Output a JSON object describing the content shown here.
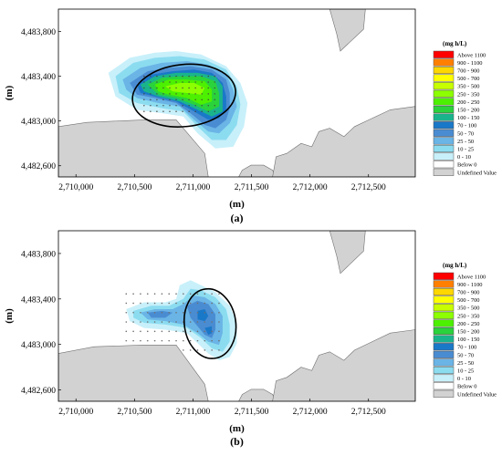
{
  "chart_data": [
    {
      "panel_label": "(a)",
      "type": "heatmap",
      "xlabel": "(m)",
      "ylabel": "(m)",
      "x_ticks": [
        "2,710,000",
        "2,710,500",
        "2,711,000",
        "2,711,500",
        "2,712,000",
        "2,712,500"
      ],
      "y_ticks": [
        "4,483,800",
        "4,483,400",
        "4,483,000",
        "4,482,600"
      ],
      "x_tick_values": [
        2710000,
        2710500,
        2711000,
        2711500,
        2712000,
        2712500
      ],
      "y_tick_values": [
        4483800,
        4483400,
        4483000,
        4482600
      ],
      "xlim": [
        2709850,
        2712900
      ],
      "ylim": [
        4482500,
        4484000
      ],
      "legend": {
        "title": "(mg h/L)",
        "placement": "right",
        "entries": [
          {
            "label": "Above 1100",
            "color": "#ff0000"
          },
          {
            "label": "900 - 1100",
            "color": "#ff7f00"
          },
          {
            "label": "700 - 900",
            "color": "#ffd700"
          },
          {
            "label": "500 - 700",
            "color": "#ffff00"
          },
          {
            "label": "350 - 500",
            "color": "#c8ff00"
          },
          {
            "label": "250 - 350",
            "color": "#8cff00"
          },
          {
            "label": "200 - 250",
            "color": "#4cf000"
          },
          {
            "label": "150 - 200",
            "color": "#2ad23c"
          },
          {
            "label": "100 - 150",
            "color": "#1ab48c"
          },
          {
            "label": "70 - 100",
            "color": "#1a78c8"
          },
          {
            "label": "50 - 70",
            "color": "#4a8cd2"
          },
          {
            "label": "25 - 50",
            "color": "#6ab4e6"
          },
          {
            "label": "10 - 25",
            "color": "#8cdcf0"
          },
          {
            "label": "0 - 10",
            "color": "#c8f0fa"
          },
          {
            "label": "Below 0",
            "color": "#ffffff"
          },
          {
            "label": "Undefined Value",
            "color": "#d2d2d2"
          }
        ]
      }
    },
    {
      "panel_label": "(b)",
      "type": "heatmap",
      "xlabel": "(m)",
      "ylabel": "(m)",
      "x_ticks": [
        "2,710,000",
        "2,710,500",
        "2,711,000",
        "2,711,500",
        "2,712,000",
        "2,712,500"
      ],
      "y_ticks": [
        "4,483,800",
        "4,483,400",
        "4,483,000",
        "4,482,600"
      ],
      "x_tick_values": [
        2710000,
        2710500,
        2711000,
        2711500,
        2712000,
        2712500
      ],
      "y_tick_values": [
        4483800,
        4483400,
        4483000,
        4482600
      ],
      "xlim": [
        2709850,
        2712900
      ],
      "ylim": [
        4482500,
        4484000
      ],
      "legend": {
        "title": "(mg h/L)",
        "placement": "right",
        "entries": [
          {
            "label": "Above 1100",
            "color": "#ff0000"
          },
          {
            "label": "900 - 1100",
            "color": "#ff7f00"
          },
          {
            "label": "700 - 900",
            "color": "#ffd700"
          },
          {
            "label": "500 - 700",
            "color": "#ffff00"
          },
          {
            "label": "350 - 500",
            "color": "#c8ff00"
          },
          {
            "label": "250 - 350",
            "color": "#8cff00"
          },
          {
            "label": "200 - 250",
            "color": "#4cf000"
          },
          {
            "label": "150 - 200",
            "color": "#2ad23c"
          },
          {
            "label": "100 - 150",
            "color": "#1ab48c"
          },
          {
            "label": "70 - 100",
            "color": "#1a78c8"
          },
          {
            "label": "50 - 70",
            "color": "#4a8cd2"
          },
          {
            "label": "25 - 50",
            "color": "#6ab4e6"
          },
          {
            "label": "10 - 25",
            "color": "#8cdcf0"
          },
          {
            "label": "0 - 10",
            "color": "#c8f0fa"
          },
          {
            "label": "Below 0",
            "color": "#ffffff"
          },
          {
            "label": "Undefined Value",
            "color": "#d2d2d2"
          }
        ]
      }
    }
  ]
}
